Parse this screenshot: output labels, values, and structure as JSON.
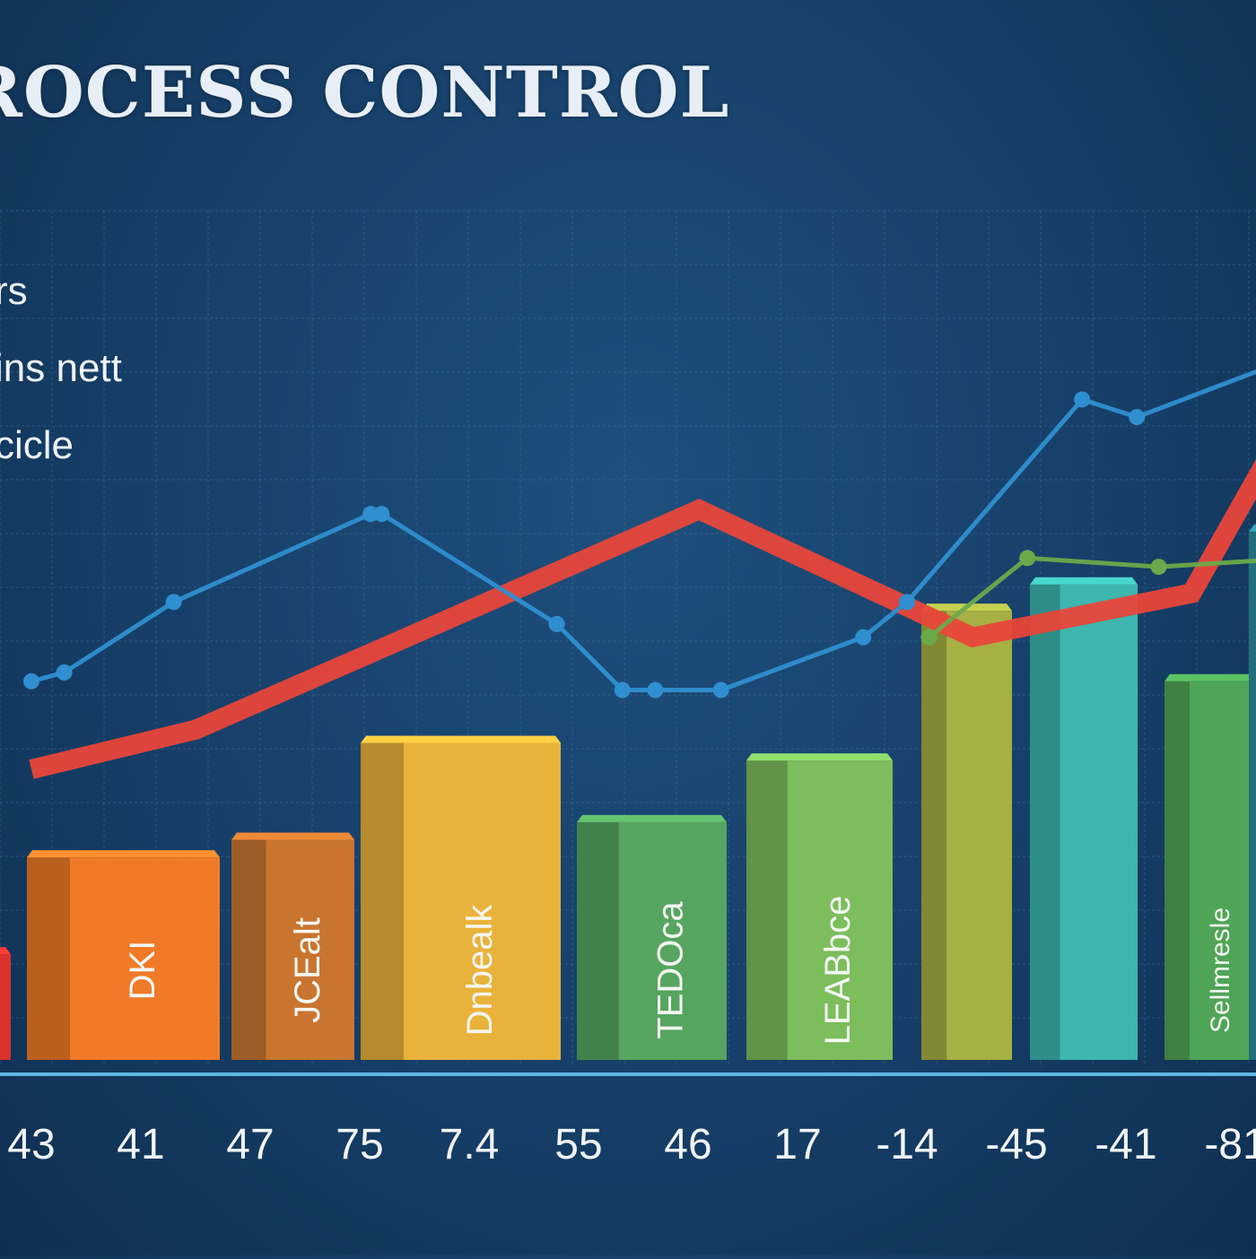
{
  "chart_data": {
    "type": "bar",
    "title": "ROCESS CONTROL",
    "legend": [
      "rs",
      "ins nett",
      "cicle"
    ],
    "categories": [
      "43",
      "41",
      "47",
      "75",
      "7.4",
      "55",
      "46",
      "17",
      "-14",
      "-45",
      "-41",
      "-81"
    ],
    "bars": [
      {
        "label": "",
        "value": 12,
        "color": "#d9322c"
      },
      {
        "label": "DKI",
        "value": 23,
        "color": "#f07a28"
      },
      {
        "label": "JCEalt",
        "value": 25,
        "color": "#c9752f"
      },
      {
        "label": "Dnbealk",
        "value": 36,
        "color": "#e9b23a"
      },
      {
        "label": "TEDOca",
        "value": 27,
        "color": "#56a560"
      },
      {
        "label": "LEABbce",
        "value": 34,
        "color": "#7cbd5c"
      },
      {
        "label": "",
        "value": 51,
        "color": "#a7b043"
      },
      {
        "label": "",
        "value": 54,
        "color": "#3cb6ae"
      },
      {
        "label": "Sellmresle",
        "value": 43,
        "color": "#4fa556"
      },
      {
        "label": "",
        "value": 60,
        "color": "#2c8d9c"
      }
    ],
    "series": [
      {
        "color": "#e8463a",
        "points": [
          [
            0,
            33
          ],
          [
            1.5,
            37.5
          ],
          [
            6.1,
            62.5
          ],
          [
            8.6,
            48
          ],
          [
            10.6,
            53
          ],
          [
            11.6,
            75
          ]
        ]
      },
      {
        "color": "#2f8fd0",
        "points": [
          [
            0,
            43
          ],
          [
            0.3,
            44
          ],
          [
            1.3,
            52
          ],
          [
            3.1,
            62
          ],
          [
            3.2,
            62
          ],
          [
            4.8,
            49.5
          ],
          [
            5.4,
            42
          ],
          [
            5.7,
            42
          ],
          [
            6.3,
            42
          ],
          [
            7.6,
            48
          ],
          [
            8.0,
            52
          ],
          [
            9.6,
            75
          ],
          [
            10.1,
            73
          ],
          [
            12,
            82
          ]
        ]
      },
      {
        "color": "#6aaa4a",
        "points": [
          [
            8.2,
            48
          ],
          [
            9.1,
            57
          ],
          [
            10.3,
            56
          ],
          [
            11.6,
            57
          ],
          [
            12,
            57.5
          ]
        ]
      }
    ],
    "ylim": [
      0,
      100
    ],
    "grid": true
  }
}
